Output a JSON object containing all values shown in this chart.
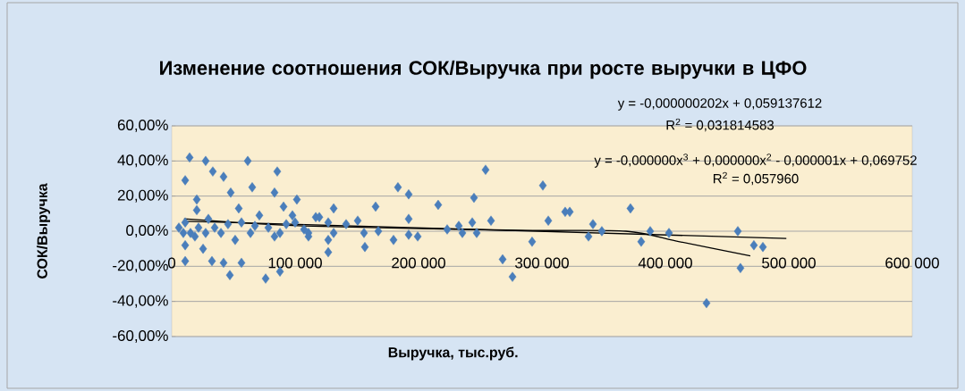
{
  "chart_data": {
    "type": "scatter",
    "title": "Изменение соотношения СОК/Выручка при росте выручки в ЦФО",
    "xlabel": "Выручка, тыс.руб.",
    "ylabel": "СОК/Выручка",
    "xlim": [
      0,
      600000
    ],
    "ylim": [
      -60,
      60
    ],
    "xticks": [
      0,
      {
        "value": 100000,
        "label": "100 000"
      },
      {
        "value": 200000,
        "label": "200 000"
      },
      {
        "value": 300000,
        "label": "300 000"
      },
      {
        "value": 400000,
        "label": "400 000"
      },
      {
        "value": 500000,
        "label": "500 000"
      },
      {
        "value": 600000,
        "label": "600 000"
      }
    ],
    "yticks": [
      {
        "value": -60,
        "label": "-60,00%"
      },
      {
        "value": -40,
        "label": "-40,00%"
      },
      {
        "value": -20,
        "label": "-20,00%"
      },
      {
        "value": 0,
        "label": "0,00%"
      },
      {
        "value": 20,
        "label": "20,00%"
      },
      {
        "value": 40,
        "label": "40,00%"
      },
      {
        "value": 60,
        "label": "60,00%"
      }
    ],
    "grid": "y",
    "marker": "diamond",
    "annotations": [
      "y = -0,000000202x + 0,059137612",
      "R$^{2}$ = 0,031814583",
      "y = -0,000000x$^{3}$ + 0,000000x$^{2}$ - 0,000001x + 0,069752",
      "R$^{2}$ = 0,057960"
    ],
    "series": [
      {
        "color": "#4a7ebb",
        "x": [
          14500,
          27500,
          61600,
          85500,
          10900,
          33300,
          42000,
          65200,
          83300,
          47800,
          101400,
          20300,
          54300,
          90600,
          97800,
          116700,
          10900,
          29700,
          71000,
          15200,
          39900,
          63800,
          87700,
          107200,
          10900,
          25400,
          51400,
          83300,
          10900,
          32600,
          42000,
          47100,
          56500,
          76100,
          87700,
          5800,
          9400,
          18800,
          21700,
          27500,
          34800,
          45600,
          56500,
          67400,
          78300,
          92800,
          100000,
          110800,
          20300,
          110800,
          119600,
          131200,
          126800,
          131200,
          126800,
          126800,
          141300,
          150700,
          155800,
          156500,
          165200,
          167400,
          179700,
          183300,
          192000,
          192000,
          192000,
          199300,
          215900,
          223200,
          232600,
          235500,
          244900,
          243500,
          247100,
          254300,
          258700,
          268100,
          276100,
          300700,
          305100,
          292000,
          318800,
          322500,
          341300,
          337700,
          348500,
          371700,
          380400,
          387700,
          402900,
          433300,
          458700,
          460800,
          471700,
          479000
        ],
        "values": [
          42,
          40,
          40,
          34,
          29,
          34,
          31,
          25,
          22,
          22,
          18,
          18,
          13,
          14,
          9,
          8,
          5,
          7,
          9,
          -1,
          -1,
          -1,
          -1,
          1,
          -8,
          -10,
          -5,
          -3,
          -17,
          -17,
          -18,
          -25,
          -18,
          -27,
          -23,
          2,
          -1,
          -3,
          2,
          -1,
          2,
          4,
          5,
          3,
          2,
          4,
          5,
          -3,
          12,
          -1,
          8,
          13,
          5,
          -1,
          -5,
          -12,
          4,
          6,
          -1,
          -9,
          14,
          0,
          -5,
          25,
          21,
          7,
          -2,
          -3,
          15,
          1,
          3,
          -1,
          19,
          5,
          -1,
          35,
          6,
          -16,
          -26,
          26,
          6,
          -6,
          11,
          11,
          4,
          -3,
          0,
          13,
          -6,
          0,
          -1,
          -41,
          0,
          -21,
          -8,
          -9
        ]
      },
      {
        "type": "line",
        "color": "#000000",
        "marker": "none",
        "x": [
          10000,
          498000
        ],
        "values": [
          5.7,
          -4.1
        ]
      },
      {
        "type": "line",
        "color": "#000000",
        "marker": "none",
        "x": [
          10000,
          107000,
          281000,
          368000,
          411600,
          468800
        ],
        "values": [
          7,
          3,
          0.5,
          0,
          -6,
          -14
        ]
      }
    ]
  }
}
